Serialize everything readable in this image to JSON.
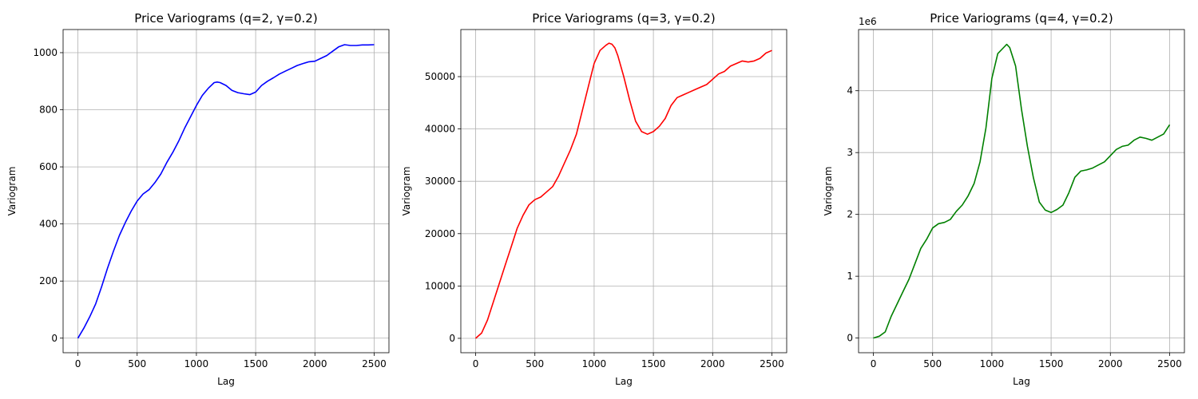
{
  "chart_data": [
    {
      "type": "line",
      "title": "Price Variograms (q=2, γ=0.2)",
      "xlabel": "Lag",
      "ylabel": "Variogram",
      "xlim": [
        -125,
        2625
      ],
      "ylim": [
        -51,
        1081
      ],
      "xticks": [
        0,
        500,
        1000,
        1500,
        2000,
        2500
      ],
      "yticks": [
        0,
        200,
        400,
        600,
        800,
        1000
      ],
      "ytick_labels": [
        "0",
        "200",
        "400",
        "600",
        "800",
        "1000"
      ],
      "offset_label": "",
      "grid": true,
      "series": [
        {
          "color": "#0000ff",
          "x": [
            0,
            50,
            100,
            150,
            200,
            250,
            300,
            350,
            400,
            450,
            500,
            550,
            600,
            650,
            700,
            750,
            800,
            850,
            900,
            950,
            1000,
            1050,
            1100,
            1150,
            1175,
            1200,
            1250,
            1300,
            1350,
            1400,
            1450,
            1500,
            1550,
            1600,
            1650,
            1700,
            1750,
            1800,
            1850,
            1900,
            1950,
            2000,
            2050,
            2100,
            2150,
            2200,
            2250,
            2300,
            2350,
            2400,
            2450,
            2500
          ],
          "values": [
            0,
            35,
            75,
            120,
            180,
            245,
            305,
            360,
            405,
            445,
            480,
            505,
            520,
            545,
            575,
            615,
            650,
            690,
            735,
            775,
            815,
            850,
            875,
            895,
            897,
            895,
            885,
            868,
            860,
            856,
            853,
            862,
            885,
            900,
            912,
            925,
            935,
            945,
            955,
            962,
            968,
            970,
            980,
            990,
            1005,
            1020,
            1028,
            1025,
            1025,
            1027,
            1027,
            1028
          ]
        }
      ]
    },
    {
      "type": "line",
      "title": "Price Variograms (q=3, γ=0.2)",
      "xlabel": "Lag",
      "ylabel": "Variogram",
      "xlim": [
        -125,
        2625
      ],
      "ylim": [
        -2750,
        59000
      ],
      "xticks": [
        0,
        500,
        1000,
        1500,
        2000,
        2500
      ],
      "yticks": [
        0,
        10000,
        20000,
        30000,
        40000,
        50000
      ],
      "ytick_labels": [
        "0",
        "10000",
        "20000",
        "30000",
        "40000",
        "50000"
      ],
      "offset_label": "",
      "grid": true,
      "series": [
        {
          "color": "#ff0000",
          "x": [
            0,
            50,
            100,
            150,
            200,
            250,
            300,
            350,
            400,
            450,
            500,
            550,
            600,
            650,
            700,
            750,
            800,
            850,
            900,
            950,
            1000,
            1050,
            1100,
            1125,
            1150,
            1175,
            1200,
            1250,
            1300,
            1350,
            1400,
            1450,
            1500,
            1550,
            1600,
            1650,
            1700,
            1750,
            1800,
            1850,
            1900,
            1950,
            2000,
            2050,
            2100,
            2150,
            2200,
            2250,
            2300,
            2350,
            2400,
            2450,
            2500
          ],
          "values": [
            0,
            1000,
            3500,
            7000,
            10500,
            14000,
            17500,
            21000,
            23500,
            25500,
            26500,
            27000,
            28000,
            29000,
            31000,
            33500,
            36000,
            39000,
            43500,
            48000,
            52500,
            55000,
            56000,
            56400,
            56200,
            55500,
            54000,
            50000,
            45500,
            41500,
            39500,
            39000,
            39500,
            40500,
            42000,
            44500,
            46000,
            46500,
            47000,
            47500,
            48000,
            48500,
            49500,
            50500,
            51000,
            52000,
            52500,
            53000,
            52800,
            53000,
            53500,
            54500,
            55000
          ]
        }
      ]
    },
    {
      "type": "line",
      "title": "Price Variograms (q=4, γ=0.2)",
      "xlabel": "Lag",
      "ylabel": "Variogram",
      "xlim": [
        -125,
        2625
      ],
      "ylim": [
        -237000,
        4990000
      ],
      "xticks": [
        0,
        500,
        1000,
        1500,
        2000,
        2500
      ],
      "yticks": [
        0,
        1000000,
        2000000,
        3000000,
        4000000
      ],
      "ytick_labels": [
        "0",
        "1",
        "2",
        "3",
        "4"
      ],
      "offset_label": "1e6",
      "grid": true,
      "series": [
        {
          "color": "#008000",
          "x": [
            0,
            50,
            100,
            150,
            200,
            250,
            300,
            350,
            400,
            450,
            500,
            550,
            600,
            650,
            700,
            750,
            800,
            850,
            900,
            950,
            1000,
            1050,
            1100,
            1125,
            1150,
            1200,
            1250,
            1300,
            1350,
            1400,
            1450,
            1500,
            1550,
            1600,
            1650,
            1700,
            1750,
            1800,
            1850,
            1900,
            1950,
            2000,
            2050,
            2100,
            2150,
            2200,
            2250,
            2300,
            2350,
            2400,
            2450,
            2500
          ],
          "values": [
            0,
            30000,
            100000,
            350000,
            550000,
            750000,
            950000,
            1200000,
            1450000,
            1600000,
            1780000,
            1850000,
            1870000,
            1920000,
            2050000,
            2150000,
            2300000,
            2500000,
            2850000,
            3400000,
            4200000,
            4600000,
            4700000,
            4750000,
            4700000,
            4400000,
            3700000,
            3100000,
            2600000,
            2200000,
            2070000,
            2030000,
            2080000,
            2150000,
            2350000,
            2600000,
            2700000,
            2720000,
            2750000,
            2800000,
            2850000,
            2950000,
            3050000,
            3100000,
            3120000,
            3200000,
            3250000,
            3230000,
            3200000,
            3250000,
            3300000,
            3450000
          ]
        }
      ]
    }
  ]
}
